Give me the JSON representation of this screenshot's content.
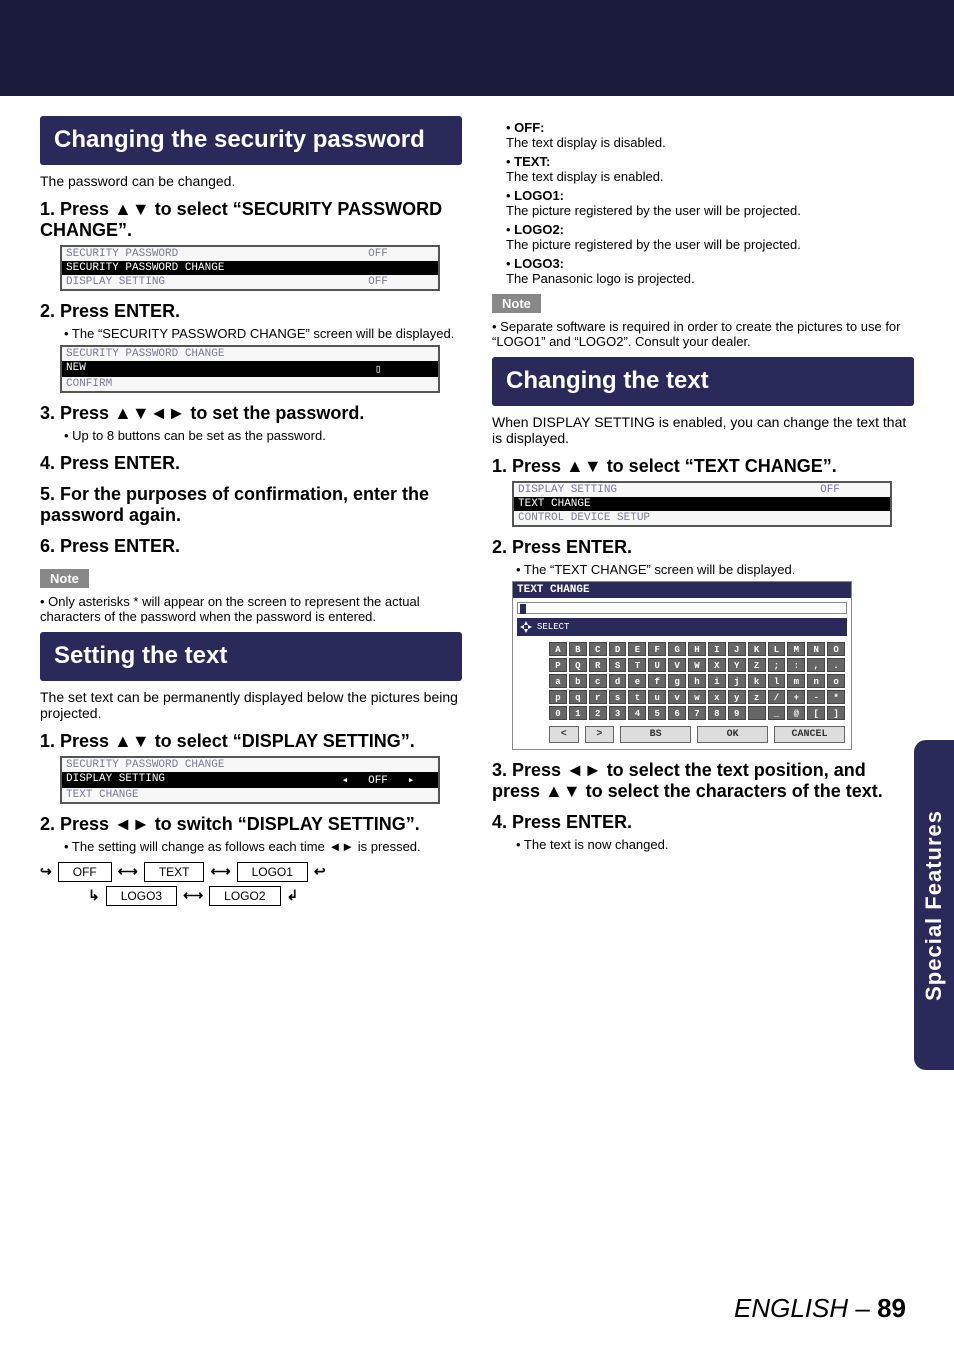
{
  "page": {
    "footer_lang": "ENGLISH",
    "footer_sep": " – ",
    "footer_page": "89"
  },
  "sidetab": {
    "label": "Special Features"
  },
  "left": {
    "h2a": "Changing the security password",
    "intro_a": "The password can be changed.",
    "s1": "1.  Press ▲▼ to select “SECURITY PASSWORD CHANGE”.",
    "menu1": {
      "r1l": " SECURITY PASSWORD",
      "r1r": "OFF",
      "r2l": " SECURITY PASSWORD CHANGE",
      "r2r": "",
      "r3l": " DISPLAY SETTING",
      "r3r": "OFF"
    },
    "s2": "2.  Press ENTER.",
    "s2b": "• The “SECURITY PASSWORD CHANGE” screen will be displayed.",
    "menu2": {
      "r1l": " SECURITY PASSWORD CHANGE",
      "r2l": " NEW",
      "r2r": "▯",
      "r3l": " CONFIRM",
      "r3r": ""
    },
    "s3": "3.  Press ▲▼◄► to set the password.",
    "s3b": "• Up to 8 buttons can be set as the password.",
    "s4": "4.  Press ENTER.",
    "s5": "5.  For the purposes of confirmation, enter the password again.",
    "s6": "6.  Press ENTER.",
    "note_lbl": "Note",
    "note_a": "• Only asterisks * will appear on the screen to represent the actual characters of the password when the password is entered.",
    "h2b": "Setting the text",
    "intro_b": "The set text can be permanently displayed below the pictures being projected.",
    "sb1": "1.  Press ▲▼ to select “DISPLAY SETTING”.",
    "menu3": {
      "r1l": " SECURITY PASSWORD CHANGE",
      "r1r": "",
      "r2l": " DISPLAY SETTING",
      "r2larrow": "◂",
      "r2r": "OFF",
      "r2rarrow": "▸",
      "r3l": " TEXT CHANGE",
      "r3r": ""
    },
    "sb2": "2.  Press ◄► to switch “DISPLAY SETTING”.",
    "sb2b": "• The setting will change as follows each time ◄► is pressed.",
    "flow": {
      "off": "OFF",
      "text": "TEXT",
      "logo1": "LOGO1",
      "logo2": "LOGO2",
      "logo3": "LOGO3"
    }
  },
  "right": {
    "b_off_t": "OFF:",
    "b_off": "The text display is disabled.",
    "b_text_t": "TEXT:",
    "b_text": "The text display is enabled.",
    "b_l1_t": "LOGO1:",
    "b_l1": "The picture registered by the user will be projected.",
    "b_l2_t": "LOGO2:",
    "b_l2": "The picture registered by the user will be projected.",
    "b_l3_t": "LOGO3:",
    "b_l3": "The Panasonic logo is projected.",
    "note_lbl": "Note",
    "note_b": "• Separate software is required in order to create the pictures to use for “LOGO1” and “LOGO2”. Consult your dealer.",
    "h2c": "Changing the text",
    "intro_c": "When DISPLAY SETTING is enabled, you can change the text that is displayed.",
    "sc1": "1.  Press ▲▼ to select “TEXT CHANGE”.",
    "menu4": {
      "r1l": " DISPLAY SETTING",
      "r1r": "OFF",
      "r2l": " TEXT CHANGE",
      "r2r": "",
      "r3l": " CONTROL DEVICE SETUP",
      "r3r": ""
    },
    "sc2": "2.  Press ENTER.",
    "sc2b": "• The “TEXT CHANGE” screen will be displayed.",
    "kbd": {
      "title": "TEXT CHANGE",
      "sel": "SELECT",
      "rows": [
        [
          "A",
          "B",
          "C",
          "D",
          "E",
          "F",
          "G",
          "H",
          "I",
          "J",
          "K",
          "L",
          "M",
          "N",
          "O"
        ],
        [
          "P",
          "Q",
          "R",
          "S",
          "T",
          "U",
          "V",
          "W",
          "X",
          "Y",
          "Z",
          ";",
          ":",
          ",",
          "."
        ],
        [
          "a",
          "b",
          "c",
          "d",
          "e",
          "f",
          "g",
          "h",
          "i",
          "j",
          "k",
          "l",
          "m",
          "n",
          "o"
        ],
        [
          "p",
          "q",
          "r",
          "s",
          "t",
          "u",
          "v",
          "w",
          "x",
          "y",
          "z",
          "/",
          "+",
          "-",
          "*"
        ],
        [
          "0",
          "1",
          "2",
          "3",
          "4",
          "5",
          "6",
          "7",
          "8",
          "9",
          " ",
          "_",
          "@",
          "[",
          "]"
        ]
      ],
      "btns": [
        "<",
        ">",
        "BS",
        "OK",
        "CANCEL"
      ]
    },
    "sc3": "3.  Press ◄► to select the text position, and press ▲▼ to select the characters of the text.",
    "sc4": "4.  Press ENTER.",
    "sc4b": "• The text is now changed."
  }
}
